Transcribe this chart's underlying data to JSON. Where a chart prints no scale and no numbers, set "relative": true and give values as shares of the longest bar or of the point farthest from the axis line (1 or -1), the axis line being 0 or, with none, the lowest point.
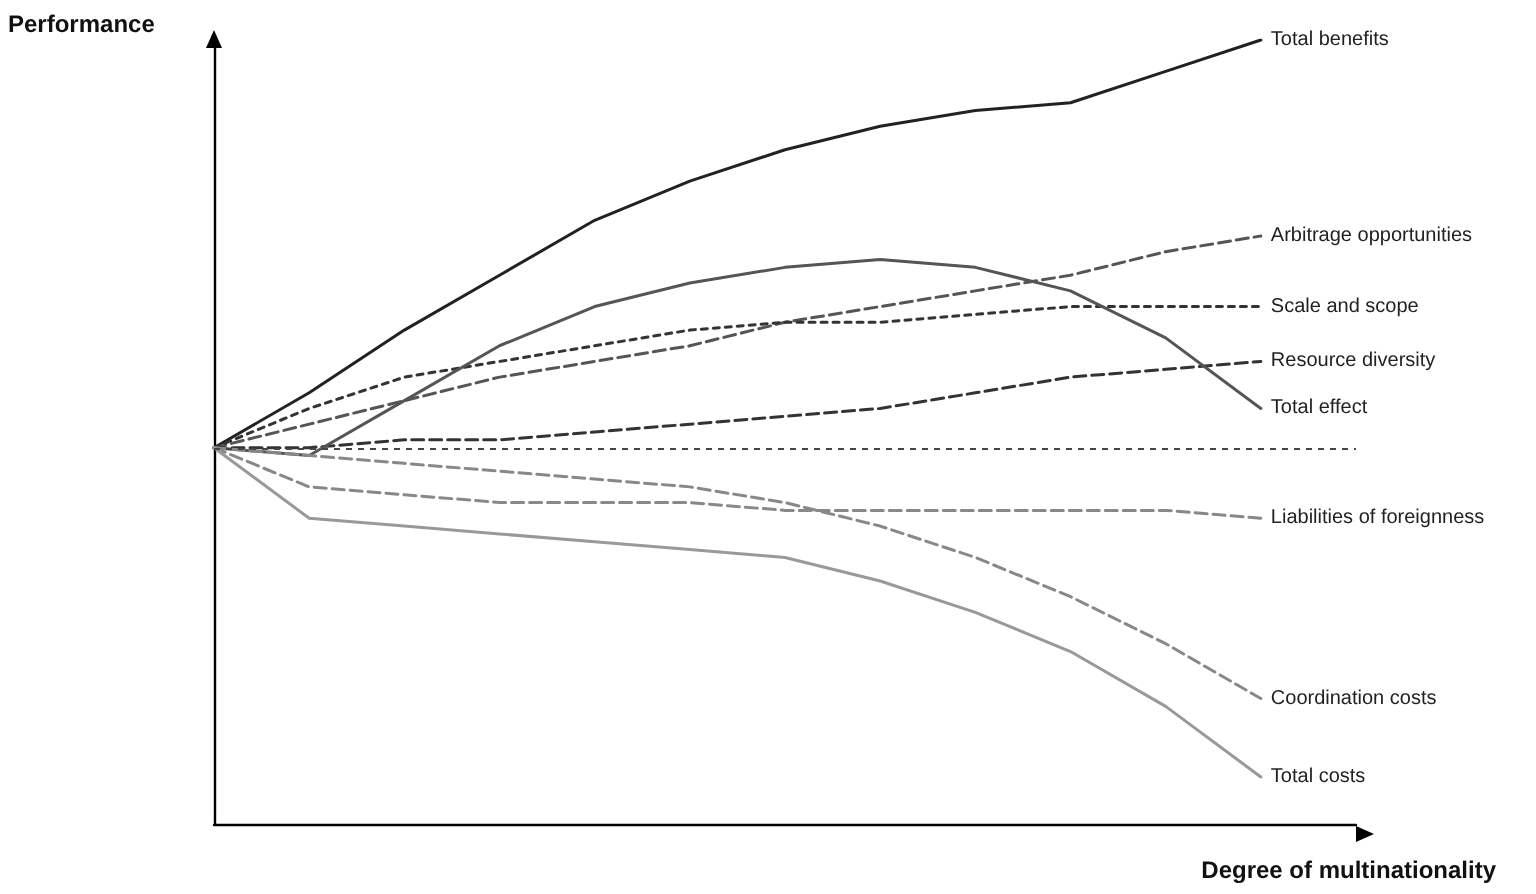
{
  "chart_data": {
    "type": "line",
    "relative": true,
    "xlabel": "Degree of multinationality",
    "ylabel": "Performance",
    "categories": [
      null,
      null,
      null,
      null,
      null,
      null,
      null,
      null,
      null,
      null,
      null,
      null,
      null
    ],
    "legend": false,
    "grid": false,
    "marker": "none",
    "ref_lines": [
      {
        "axis": "y",
        "value": 0.48,
        "color": "#444444",
        "line_style": "dotted"
      }
    ],
    "series": [
      {
        "name": "Total benefits",
        "color": "#222222",
        "line_style": "solid",
        "values": [
          0.48,
          0.55,
          0.63,
          0.7,
          0.77,
          0.82,
          0.86,
          0.89,
          0.91,
          0.92,
          0.96,
          1,
          null
        ]
      },
      {
        "name": "Arbitrage opportunities",
        "color": "#555555",
        "line_style": "dashed",
        "values": [
          0.48,
          0.51,
          0.54,
          0.57,
          0.59,
          0.61,
          0.64,
          0.66,
          0.68,
          0.7,
          0.73,
          0.75,
          null
        ]
      },
      {
        "name": "Scale and scope",
        "color": "#333333",
        "line_style": "dotted",
        "values": [
          0.48,
          0.53,
          0.57,
          0.59,
          0.61,
          0.63,
          0.64,
          0.64,
          0.65,
          0.66,
          0.66,
          0.66,
          null
        ]
      },
      {
        "name": "Resource diversity",
        "color": "#333333",
        "line_style": "dashed",
        "values": [
          0.48,
          0.48,
          0.49,
          0.49,
          0.5,
          0.51,
          0.52,
          0.53,
          0.55,
          0.57,
          0.58,
          0.59,
          null
        ]
      },
      {
        "name": "Total effect",
        "color": "#555555",
        "line_style": "solid",
        "values": [
          0.48,
          0.47,
          0.54,
          0.61,
          0.66,
          0.69,
          0.71,
          0.72,
          0.71,
          0.68,
          0.62,
          0.53,
          null
        ]
      },
      {
        "name": "Liabilities of foreignness",
        "color": "#888888",
        "line_style": "dashed",
        "values": [
          0.48,
          0.43,
          0.42,
          0.41,
          0.41,
          0.41,
          0.4,
          0.4,
          0.4,
          0.4,
          0.4,
          0.39,
          null
        ]
      },
      {
        "name": "Coordination costs",
        "color": "#888888",
        "line_style": "dashed",
        "values": [
          0.48,
          0.47,
          0.46,
          0.45,
          0.44,
          0.43,
          0.41,
          0.38,
          0.34,
          0.29,
          0.23,
          0.16,
          null
        ]
      },
      {
        "name": "Total costs",
        "color": "#999999",
        "line_style": "solid",
        "values": [
          0.48,
          0.39,
          0.38,
          0.37,
          0.36,
          0.35,
          0.34,
          0.31,
          0.27,
          0.22,
          0.15,
          0.06,
          null
        ]
      }
    ]
  }
}
